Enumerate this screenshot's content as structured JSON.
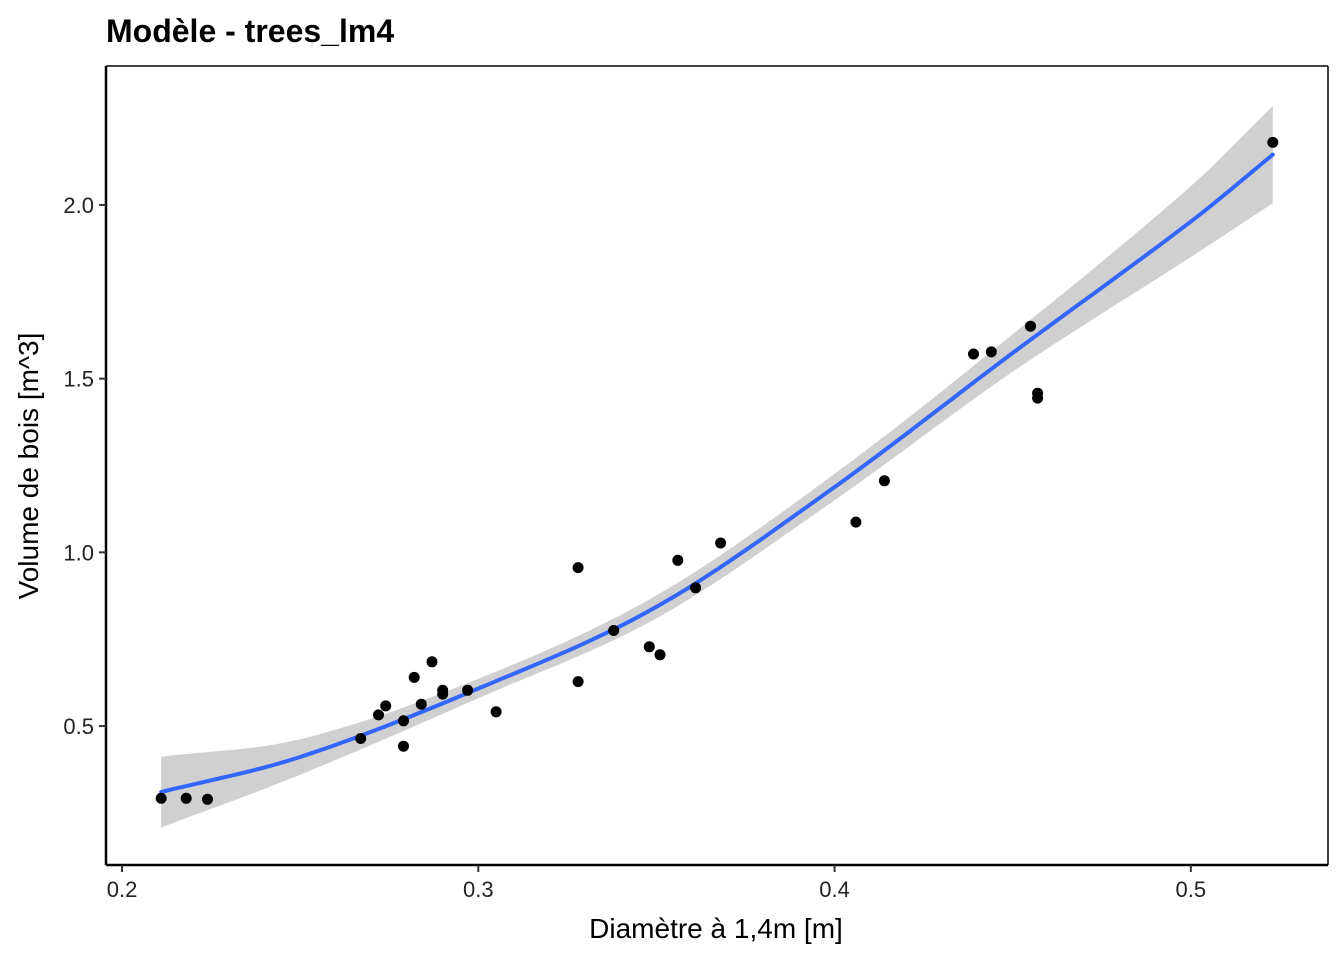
{
  "chart_data": {
    "type": "scatter",
    "title": "Modèle - trees_lm4",
    "xlabel": "Diamètre à 1,4m  [m]",
    "ylabel": "Volume de bois  [m^3]",
    "xlim": [
      0.1955,
      0.5385
    ],
    "ylim": [
      0.1,
      2.4
    ],
    "x_ticks": [
      0.2,
      0.3,
      0.4,
      0.5
    ],
    "x_tick_labels": [
      "0.2",
      "0.3",
      "0.4",
      "0.5"
    ],
    "y_ticks": [
      0.5,
      1.0,
      1.5,
      2.0
    ],
    "y_tick_labels": [
      "0.5",
      "1.0",
      "1.5",
      "2.0"
    ],
    "grid": false,
    "points": {
      "color": "#000000",
      "x": [
        0.211,
        0.218,
        0.224,
        0.267,
        0.272,
        0.274,
        0.279,
        0.279,
        0.282,
        0.284,
        0.287,
        0.29,
        0.29,
        0.297,
        0.305,
        0.328,
        0.328,
        0.338,
        0.348,
        0.351,
        0.356,
        0.361,
        0.368,
        0.406,
        0.414,
        0.439,
        0.444,
        0.455,
        0.457,
        0.457,
        0.523
      ],
      "y": [
        0.292,
        0.292,
        0.289,
        0.464,
        0.532,
        0.558,
        0.515,
        0.442,
        0.64,
        0.563,
        0.685,
        0.603,
        0.592,
        0.603,
        0.541,
        0.628,
        0.956,
        0.775,
        0.728,
        0.705,
        0.977,
        0.898,
        1.027,
        1.087,
        1.206,
        1.571,
        1.577,
        1.651,
        1.458,
        1.444,
        2.18
      ]
    },
    "fit_line": {
      "color": "#3366ff",
      "x": [
        0.211,
        0.25,
        0.3,
        0.35,
        0.4,
        0.45,
        0.5,
        0.523
      ],
      "y": [
        0.31,
        0.411,
        0.608,
        0.843,
        1.188,
        1.574,
        1.952,
        2.145
      ]
    },
    "confidence_band": {
      "color": "#d0d0d0",
      "x": [
        0.211,
        0.25,
        0.3,
        0.35,
        0.4,
        0.45,
        0.5,
        0.523
      ],
      "lower": [
        0.208,
        0.36,
        0.58,
        0.81,
        1.15,
        1.52,
        1.85,
        2.005
      ],
      "upper": [
        0.412,
        0.462,
        0.636,
        0.876,
        1.226,
        1.628,
        2.054,
        2.285
      ]
    }
  }
}
